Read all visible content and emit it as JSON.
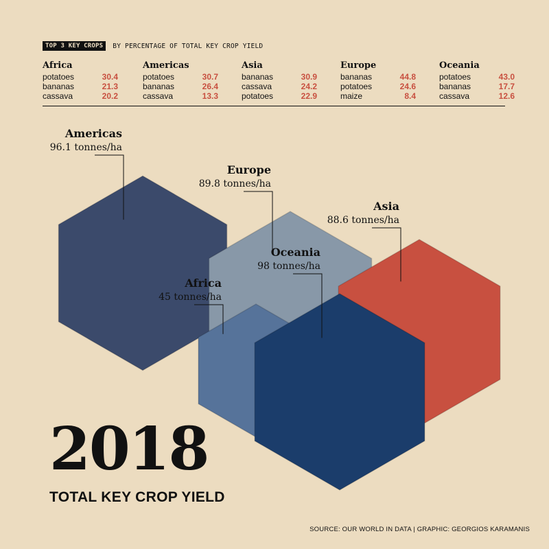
{
  "header": {
    "tag": "TOP 3 KEY CROPS",
    "subtitle": "BY PERCENTAGE OF TOTAL KEY CROP YIELD"
  },
  "regions_table": [
    {
      "name": "Africa",
      "crops": [
        {
          "crop": "potatoes",
          "pct": "30.4"
        },
        {
          "crop": "bananas",
          "pct": "21.3"
        },
        {
          "crop": "cassava",
          "pct": "20.2"
        }
      ]
    },
    {
      "name": "Americas",
      "crops": [
        {
          "crop": "potatoes",
          "pct": "30.7"
        },
        {
          "crop": "bananas",
          "pct": "26.4"
        },
        {
          "crop": "cassava",
          "pct": "13.3"
        }
      ]
    },
    {
      "name": "Asia",
      "crops": [
        {
          "crop": "bananas",
          "pct": "30.9"
        },
        {
          "crop": "cassava",
          "pct": "24.2"
        },
        {
          "crop": "potatoes",
          "pct": "22.9"
        }
      ]
    },
    {
      "name": "Europe",
      "crops": [
        {
          "crop": "bananas",
          "pct": "44.8"
        },
        {
          "crop": "potatoes",
          "pct": "24.6"
        },
        {
          "crop": "maize",
          "pct": "8.4"
        }
      ]
    },
    {
      "name": "Oceania",
      "crops": [
        {
          "crop": "potatoes",
          "pct": "43.0"
        },
        {
          "crop": "bananas",
          "pct": "17.7"
        },
        {
          "crop": "cassava",
          "pct": "12.6"
        }
      ]
    }
  ],
  "chart_data": {
    "type": "hexagon-size",
    "title": "TOTAL KEY CROP YIELD",
    "year": "2018",
    "unit": "tonnes/ha",
    "categories": [
      "Americas",
      "Europe",
      "Asia",
      "Oceania",
      "Africa"
    ],
    "values": [
      96.1,
      89.8,
      88.6,
      98,
      45
    ],
    "value_labels": [
      "96.1 tonnes/ha",
      "89.8 tonnes/ha",
      "88.6 tonnes/ha",
      "98 tonnes/ha",
      "45 tonnes/ha"
    ],
    "colors": {
      "Americas": "#3b4a6b",
      "Europe": "#8898a8",
      "Asia": "#c85040",
      "Oceania": "#1b3d6b",
      "Africa": "#56739a"
    }
  },
  "source": "SOURCE: OUR WORLD IN DATA | GRAPHIC: GEORGIOS KARAMANIS"
}
